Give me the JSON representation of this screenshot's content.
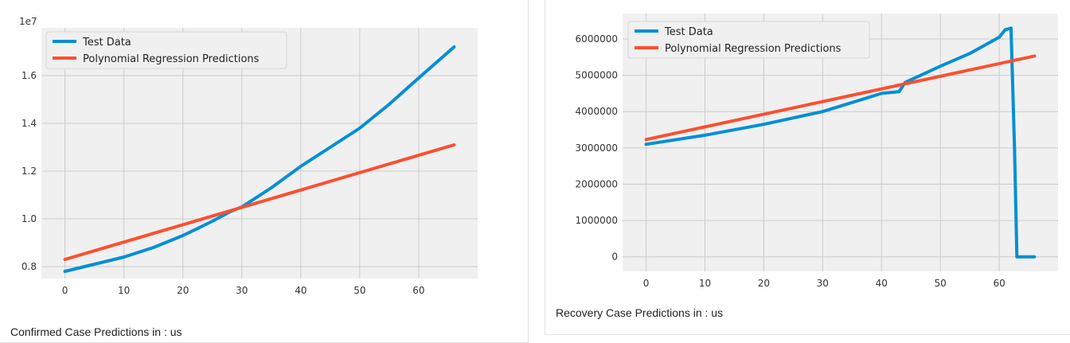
{
  "style": {
    "plot_bg": "#f0f0f0",
    "grid_color": "#cbcbcb",
    "test_color": "#008fd5",
    "pred_color": "#fc4f30",
    "tick_color": "#333333"
  },
  "chart_data": [
    {
      "type": "line",
      "title": "",
      "xlabel": "",
      "ylabel": "",
      "y_offset_label": "1e7",
      "xlim": [
        -4,
        70
      ],
      "ylim": [
        0.75,
        1.8
      ],
      "xticks": [
        0,
        10,
        20,
        30,
        40,
        50,
        60
      ],
      "yticks": [
        0.8,
        1.0,
        1.2,
        1.4,
        1.6
      ],
      "ytick_labels": [
        "0.8",
        "1.0",
        "1.2",
        "1.4",
        "1.6"
      ],
      "grid": true,
      "legend_position": "top-left",
      "series": [
        {
          "name": "Test Data",
          "color": "#008fd5",
          "x": [
            0,
            5,
            10,
            15,
            20,
            25,
            28,
            30,
            35,
            40,
            45,
            50,
            55,
            60,
            66
          ],
          "y": [
            0.78,
            0.81,
            0.84,
            0.88,
            0.93,
            0.99,
            1.03,
            1.05,
            1.13,
            1.22,
            1.3,
            1.38,
            1.48,
            1.59,
            1.72
          ]
        },
        {
          "name": "Polynomial Regression Predictions",
          "color": "#fc4f30",
          "x": [
            0,
            66
          ],
          "y": [
            0.83,
            1.31
          ]
        }
      ],
      "caption": "Confirmed Case Predictions in : us"
    },
    {
      "type": "line",
      "title": "",
      "xlabel": "",
      "ylabel": "",
      "xlim": [
        -4,
        70
      ],
      "ylim": [
        -400000,
        6700000
      ],
      "xticks": [
        0,
        10,
        20,
        30,
        40,
        50,
        60
      ],
      "yticks": [
        0,
        1000000,
        2000000,
        3000000,
        4000000,
        5000000,
        6000000
      ],
      "ytick_labels": [
        "0",
        "1000000",
        "2000000",
        "3000000",
        "4000000",
        "5000000",
        "6000000"
      ],
      "grid": true,
      "legend_position": "top-left",
      "series": [
        {
          "name": "Test Data",
          "color": "#008fd5",
          "x": [
            0,
            10,
            20,
            30,
            40,
            43,
            44,
            50,
            55,
            60,
            61,
            62,
            62.6,
            63,
            66
          ],
          "y": [
            3100000,
            3350000,
            3650000,
            4000000,
            4500000,
            4550000,
            4800000,
            5250000,
            5600000,
            6050000,
            6250000,
            6300000,
            3000000,
            0,
            0
          ]
        },
        {
          "name": "Polynomial Regression Predictions",
          "color": "#fc4f30",
          "x": [
            0,
            66
          ],
          "y": [
            3230000,
            5530000
          ]
        }
      ],
      "caption": "Recovery Case Predictions in : us"
    }
  ]
}
